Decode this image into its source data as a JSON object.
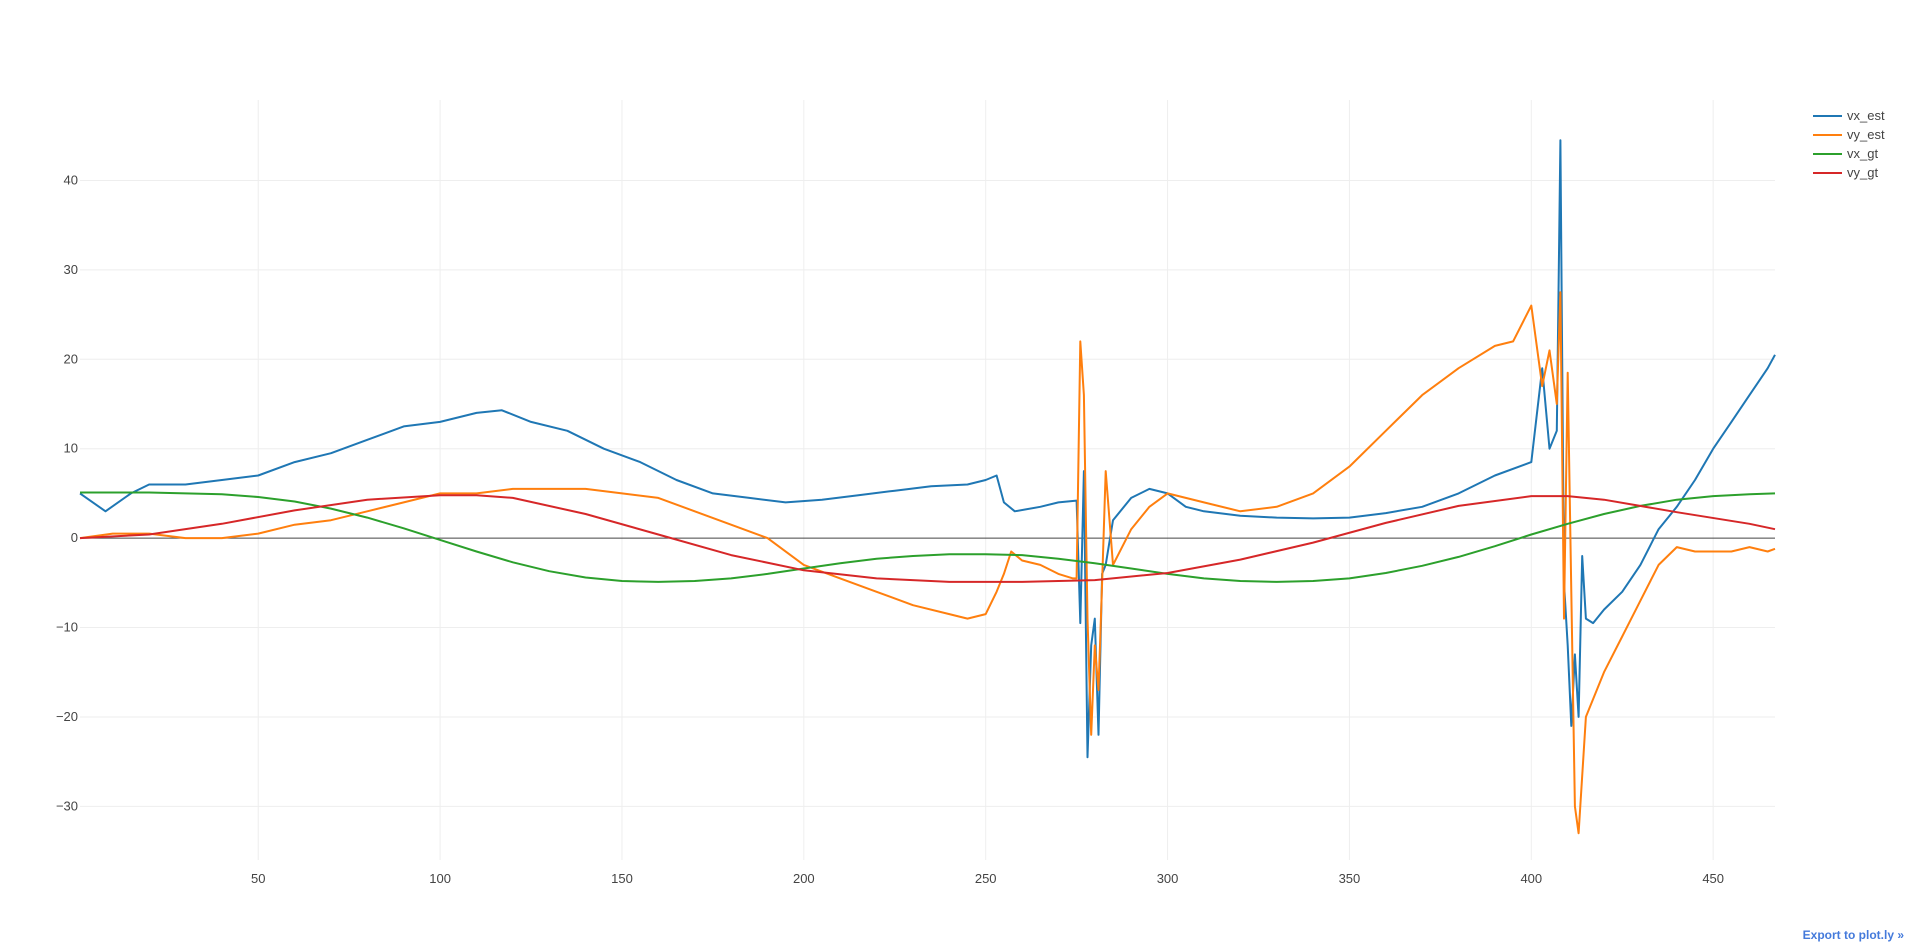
{
  "export_link": {
    "label": "Export to plot.ly »"
  },
  "colors": {
    "vx_est": "#1f77b4",
    "vy_est": "#ff7f0e",
    "vx_gt": "#2ca02c",
    "vy_gt": "#d62728",
    "grid": "#eeeeee",
    "zeroline": "#444444",
    "text": "#444444"
  },
  "chart_data": {
    "type": "line",
    "title": "",
    "xlabel": "",
    "ylabel": "",
    "xlim": [
      1,
      467
    ],
    "ylim": [
      -36,
      49
    ],
    "x_ticks": [
      50,
      100,
      150,
      200,
      250,
      300,
      350,
      400,
      450
    ],
    "y_ticks": [
      -30,
      -20,
      -10,
      0,
      10,
      20,
      30,
      40
    ],
    "grid": true,
    "legend_position": "top-right",
    "series": [
      {
        "name": "vx_est",
        "color": "#1f77b4",
        "x": [
          1,
          8,
          15,
          20,
          30,
          40,
          50,
          60,
          70,
          80,
          90,
          100,
          110,
          117,
          125,
          135,
          145,
          155,
          165,
          175,
          185,
          195,
          205,
          215,
          225,
          235,
          245,
          250,
          253,
          255,
          258,
          265,
          270,
          275,
          276,
          277,
          278,
          279,
          280,
          281,
          282,
          283,
          285,
          290,
          295,
          300,
          305,
          310,
          320,
          330,
          340,
          350,
          360,
          370,
          380,
          390,
          400,
          403,
          405,
          407,
          408,
          409,
          410,
          411,
          412,
          413,
          414,
          415,
          417,
          420,
          425,
          430,
          435,
          440,
          445,
          450,
          455,
          460,
          465,
          467
        ],
        "y": [
          5,
          3,
          5,
          6,
          6,
          6.5,
          7,
          8.5,
          9.5,
          11,
          12.5,
          13,
          14,
          14.3,
          13,
          12,
          10,
          8.5,
          6.5,
          5,
          4.5,
          4,
          4.3,
          4.8,
          5.3,
          5.8,
          6,
          6.5,
          7,
          4,
          3,
          3.5,
          4,
          4.2,
          -9.5,
          7.5,
          -24.5,
          -12,
          -9,
          -22,
          -4,
          -3,
          2,
          4.5,
          5.5,
          5,
          3.5,
          3,
          2.5,
          2.3,
          2.2,
          2.3,
          2.8,
          3.5,
          5,
          7,
          8.5,
          19,
          10,
          12,
          44.5,
          -5,
          -12,
          -21,
          -13,
          -20,
          -2,
          -9,
          -9.5,
          -8,
          -6,
          -3,
          1,
          3.5,
          6.5,
          10,
          13,
          16,
          19,
          20.5
        ]
      },
      {
        "name": "vy_est",
        "color": "#ff7f0e",
        "x": [
          1,
          10,
          20,
          30,
          40,
          50,
          60,
          70,
          80,
          90,
          100,
          110,
          120,
          130,
          140,
          150,
          160,
          170,
          180,
          190,
          200,
          210,
          220,
          230,
          240,
          245,
          250,
          253,
          255,
          257,
          260,
          265,
          270,
          274,
          275,
          276,
          277,
          278,
          279,
          280,
          281,
          282,
          283,
          285,
          290,
          295,
          300,
          310,
          320,
          330,
          340,
          350,
          360,
          370,
          380,
          390,
          395,
          400,
          403,
          405,
          407,
          408,
          409,
          410,
          411,
          412,
          413,
          415,
          420,
          425,
          430,
          435,
          440,
          445,
          450,
          455,
          460,
          465,
          467
        ],
        "y": [
          0,
          0.5,
          0.5,
          0,
          0,
          0.5,
          1.5,
          2,
          3,
          4,
          5,
          5,
          5.5,
          5.5,
          5.5,
          5,
          4.5,
          3,
          1.5,
          0,
          -3,
          -4.5,
          -6,
          -7.5,
          -8.5,
          -9,
          -8.5,
          -6,
          -4,
          -1.5,
          -2.5,
          -3,
          -4,
          -4.5,
          -4.5,
          22,
          16,
          -9,
          -22,
          -12,
          -17,
          -5,
          7.5,
          -3,
          1,
          3.5,
          5,
          4,
          3,
          3.5,
          5,
          8,
          12,
          16,
          19,
          21.5,
          22,
          26,
          17,
          21,
          15,
          27.5,
          -9,
          18.5,
          -6,
          -30,
          -33,
          -20,
          -15,
          -11,
          -7,
          -3,
          -1,
          -1.5,
          -1.5,
          -1.5,
          -1,
          -1.5,
          -1.2
        ]
      },
      {
        "name": "vx_gt",
        "color": "#2ca02c",
        "x": [
          1,
          20,
          40,
          50,
          60,
          70,
          80,
          90,
          100,
          110,
          120,
          130,
          140,
          150,
          160,
          170,
          180,
          190,
          200,
          210,
          220,
          230,
          240,
          250,
          260,
          270,
          280,
          290,
          300,
          310,
          320,
          330,
          340,
          350,
          360,
          370,
          380,
          390,
          400,
          410,
          420,
          430,
          440,
          450,
          460,
          467
        ],
        "y": [
          5.1,
          5.1,
          4.9,
          4.6,
          4.1,
          3.3,
          2.3,
          1.1,
          -0.2,
          -1.5,
          -2.7,
          -3.7,
          -4.4,
          -4.8,
          -4.9,
          -4.8,
          -4.5,
          -4.0,
          -3.4,
          -2.8,
          -2.3,
          -2.0,
          -1.8,
          -1.8,
          -1.9,
          -2.3,
          -2.8,
          -3.4,
          -4.0,
          -4.5,
          -4.8,
          -4.9,
          -4.8,
          -4.5,
          -3.9,
          -3.1,
          -2.1,
          -0.9,
          0.4,
          1.6,
          2.7,
          3.6,
          4.3,
          4.7,
          4.9,
          5.0
        ]
      },
      {
        "name": "vy_gt",
        "color": "#d62728",
        "x": [
          1,
          20,
          40,
          60,
          80,
          100,
          110,
          120,
          140,
          160,
          180,
          200,
          220,
          240,
          260,
          280,
          300,
          320,
          340,
          360,
          380,
          400,
          410,
          420,
          440,
          460,
          467
        ],
        "y": [
          0,
          0.4,
          1.6,
          3.1,
          4.3,
          4.8,
          4.8,
          4.5,
          2.7,
          0.4,
          -1.9,
          -3.6,
          -4.5,
          -4.9,
          -4.9,
          -4.7,
          -3.9,
          -2.4,
          -0.5,
          1.7,
          3.6,
          4.7,
          4.7,
          4.3,
          2.9,
          1.6,
          1.0
        ]
      }
    ]
  }
}
